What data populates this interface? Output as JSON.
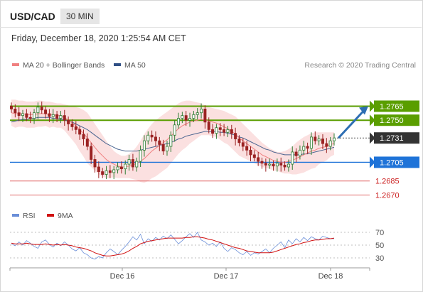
{
  "header": {
    "pair": "USD/CAD",
    "timeframe": "30 MIN",
    "datetime": "Friday, December 18, 2020 1:25:54 AM CET"
  },
  "legend": {
    "ma_bb": "MA 20 + Bollinger Bands",
    "ma50": "MA 50",
    "credit": "Research © 2020 Trading Central",
    "rsi": "RSI",
    "ma9": "9MA"
  },
  "colors": {
    "up_candle": "#2e7d32",
    "down_candle": "#9a2222",
    "bollinger_fill": "#fbe0e0",
    "ma20": "#f08080",
    "ma50": "#4a6490",
    "resistance": "#5a9e00",
    "pivot": "#1e73d8",
    "support": "#e06666",
    "last_price": "#333333",
    "arrow": "#2d6eb3",
    "rsi": "#6a8ed8",
    "rsi_ma": "#d01010"
  },
  "chart_data": [
    {
      "type": "candlestick",
      "title": "USD/CAD",
      "timeframe": "30 MIN",
      "x_ticks": [
        "Dec 16",
        "Dec 17",
        "Dec 18"
      ],
      "ylim": [
        1.2662,
        1.2795
      ],
      "levels": [
        {
          "label": "1.2765",
          "value": 1.2765,
          "kind": "resistance"
        },
        {
          "label": "1.2750",
          "value": 1.275,
          "kind": "resistance"
        },
        {
          "label": "1.2731",
          "value": 1.2731,
          "kind": "last"
        },
        {
          "label": "1.2705",
          "value": 1.2705,
          "kind": "pivot"
        },
        {
          "label": "1.2685",
          "value": 1.2685,
          "kind": "support"
        },
        {
          "label": "1.2670",
          "value": 1.267,
          "kind": "support"
        }
      ],
      "closes": [
        1.2762,
        1.2758,
        1.2755,
        1.2757,
        1.2753,
        1.2752,
        1.2758,
        1.2764,
        1.2761,
        1.2757,
        1.2754,
        1.2756,
        1.2752,
        1.2755,
        1.275,
        1.2746,
        1.2743,
        1.274,
        1.2735,
        1.273,
        1.2722,
        1.2708,
        1.27,
        1.2695,
        1.2692,
        1.2696,
        1.2694,
        1.2697,
        1.27,
        1.2698,
        1.2703,
        1.2708,
        1.27,
        1.2706,
        1.2718,
        1.2728,
        1.2734,
        1.2732,
        1.2728,
        1.2724,
        1.2717,
        1.2722,
        1.2734,
        1.2745,
        1.2752,
        1.2755,
        1.275,
        1.2752,
        1.2756,
        1.2758,
        1.2762,
        1.2748,
        1.274,
        1.2736,
        1.2742,
        1.274,
        1.2737,
        1.274,
        1.2736,
        1.273,
        1.2726,
        1.2722,
        1.2718,
        1.2713,
        1.271,
        1.2706,
        1.2704,
        1.2702,
        1.2703,
        1.2701,
        1.2704,
        1.2702,
        1.27,
        1.2703,
        1.2716,
        1.2712,
        1.2718,
        1.2722,
        1.272,
        1.2732,
        1.2728,
        1.273,
        1.2725,
        1.2722,
        1.2728,
        1.2731
      ],
      "ma20": [
        1.2758,
        1.2757,
        1.2757,
        1.2757,
        1.2756,
        1.2756,
        1.2756,
        1.2757,
        1.2757,
        1.2757,
        1.2756,
        1.2756,
        1.2755,
        1.2755,
        1.2753,
        1.275,
        1.2747,
        1.2744,
        1.274,
        1.2736,
        1.2731,
        1.2726,
        1.2721,
        1.2716,
        1.2712,
        1.2708,
        1.2705,
        1.2703,
        1.2701,
        1.27,
        1.27,
        1.2701,
        1.2702,
        1.2704,
        1.2706,
        1.2709,
        1.2713,
        1.2717,
        1.272,
        1.2723,
        1.2726,
        1.2729,
        1.2733,
        1.2737,
        1.2741,
        1.2744,
        1.2746,
        1.2748,
        1.2749,
        1.275,
        1.2751,
        1.275,
        1.2749,
        1.2748,
        1.2747,
        1.2745,
        1.2743,
        1.2741,
        1.2738,
        1.2735,
        1.2731,
        1.2728,
        1.2725,
        1.2722,
        1.2719,
        1.2716,
        1.2713,
        1.2711,
        1.2709,
        1.2707,
        1.2706,
        1.2705,
        1.2705,
        1.2706,
        1.2707,
        1.2709,
        1.2711,
        1.2713,
        1.2715,
        1.2717,
        1.2718,
        1.272,
        1.2721,
        1.2722,
        1.2724,
        1.2725
      ],
      "bb_upper": [
        1.2772,
        1.2772,
        1.2771,
        1.2771,
        1.277,
        1.277,
        1.277,
        1.2771,
        1.2771,
        1.277,
        1.277,
        1.2769,
        1.2768,
        1.2768,
        1.2767,
        1.2766,
        1.2765,
        1.2764,
        1.2763,
        1.2761,
        1.2758,
        1.2752,
        1.2746,
        1.274,
        1.2734,
        1.2728,
        1.2722,
        1.2717,
        1.2714,
        1.2712,
        1.2712,
        1.2714,
        1.2717,
        1.2722,
        1.2728,
        1.2735,
        1.2741,
        1.2746,
        1.275,
        1.2753,
        1.2756,
        1.2759,
        1.2762,
        1.2765,
        1.2768,
        1.277,
        1.2771,
        1.2771,
        1.277,
        1.2769,
        1.2768,
        1.2766,
        1.2764,
        1.2763,
        1.2762,
        1.2761,
        1.276,
        1.2758,
        1.2756,
        1.2754,
        1.275,
        1.2746,
        1.2742,
        1.2738,
        1.2734,
        1.273,
        1.2726,
        1.2723,
        1.272,
        1.2718,
        1.2716,
        1.2716,
        1.2717,
        1.2719,
        1.2722,
        1.2726,
        1.2729,
        1.2732,
        1.2734,
        1.2736,
        1.2737,
        1.2737,
        1.2737,
        1.2737,
        1.2737,
        1.2737
      ],
      "bb_lower": [
        1.2744,
        1.2742,
        1.2743,
        1.2743,
        1.2742,
        1.2742,
        1.2742,
        1.2743,
        1.2743,
        1.2744,
        1.2742,
        1.2743,
        1.2742,
        1.2742,
        1.2739,
        1.2734,
        1.2729,
        1.2724,
        1.2717,
        1.2711,
        1.2704,
        1.27,
        1.2696,
        1.2692,
        1.269,
        1.2688,
        1.2688,
        1.2689,
        1.2688,
        1.2688,
        1.2688,
        1.2688,
        1.2687,
        1.2686,
        1.2684,
        1.2683,
        1.2685,
        1.2688,
        1.269,
        1.2693,
        1.2696,
        1.2699,
        1.2704,
        1.2709,
        1.2714,
        1.2718,
        1.2721,
        1.2725,
        1.2728,
        1.2731,
        1.2734,
        1.2734,
        1.2734,
        1.2733,
        1.2732,
        1.2729,
        1.2726,
        1.2724,
        1.272,
        1.2716,
        1.2712,
        1.271,
        1.2708,
        1.2706,
        1.2704,
        1.2702,
        1.27,
        1.2699,
        1.2698,
        1.2696,
        1.2696,
        1.2694,
        1.2693,
        1.2693,
        1.2692,
        1.2692,
        1.2693,
        1.2694,
        1.2696,
        1.2698,
        1.2699,
        1.2703,
        1.2705,
        1.2707,
        1.2711,
        1.2713
      ],
      "ma50": [
        1.2748,
        1.2749,
        1.275,
        1.2751,
        1.2751,
        1.2752,
        1.2752,
        1.2753,
        1.2753,
        1.2753,
        1.2753,
        1.2752,
        1.2752,
        1.2751,
        1.275,
        1.2749,
        1.2748,
        1.2746,
        1.2744,
        1.2742,
        1.274,
        1.2737,
        1.2734,
        1.2731,
        1.2728,
        1.2725,
        1.2723,
        1.2721,
        1.2719,
        1.2718,
        1.2717,
        1.2717,
        1.2717,
        1.2717,
        1.2718,
        1.2719,
        1.272,
        1.2721,
        1.2722,
        1.2723,
        1.2724,
        1.2725,
        1.2726,
        1.2728,
        1.273,
        1.2731,
        1.2733,
        1.2734,
        1.2735,
        1.2736,
        1.2737,
        1.2738,
        1.2738,
        1.2738,
        1.2738,
        1.2737,
        1.2737,
        1.2736,
        1.2735,
        1.2734,
        1.2732,
        1.2731,
        1.2729,
        1.2727,
        1.2725,
        1.2723,
        1.2721,
        1.2719,
        1.2718,
        1.2716,
        1.2715,
        1.2714,
        1.2713,
        1.2713,
        1.2713,
        1.2713,
        1.2713,
        1.2714,
        1.2714,
        1.2715,
        1.2716,
        1.2717,
        1.2718,
        1.2719,
        1.272,
        1.2721
      ]
    },
    {
      "type": "line",
      "title": "RSI",
      "y_ticks": [
        "70",
        "50",
        "30"
      ],
      "ylim": [
        20,
        80
      ],
      "series": [
        {
          "name": "RSI",
          "values": [
            52,
            49,
            55,
            50,
            57,
            53,
            48,
            45,
            55,
            58,
            51,
            47,
            53,
            49,
            55,
            50,
            44,
            41,
            46,
            38,
            35,
            30,
            28,
            32,
            30,
            38,
            44,
            40,
            35,
            42,
            48,
            55,
            63,
            58,
            67,
            52,
            60,
            56,
            62,
            58,
            64,
            60,
            66,
            59,
            52,
            57,
            63,
            68,
            62,
            70,
            58,
            55,
            50,
            53,
            48,
            55,
            45,
            40,
            46,
            43,
            38,
            35,
            40,
            34,
            38,
            36,
            40,
            44,
            38,
            45,
            50,
            55,
            46,
            58,
            52,
            60,
            55,
            62,
            57,
            63,
            60,
            58,
            64,
            62,
            60,
            60
          ]
        },
        {
          "name": "9MA",
          "values": [
            53,
            52,
            52,
            52,
            53,
            52,
            51,
            51,
            51,
            52,
            51,
            50,
            51,
            50,
            51,
            50,
            49,
            47,
            46,
            45,
            43,
            41,
            38,
            36,
            34,
            33,
            33,
            34,
            35,
            36,
            38,
            41,
            45,
            48,
            52,
            54,
            56,
            57,
            58,
            59,
            60,
            61,
            61,
            61,
            61,
            61,
            62,
            62,
            63,
            63,
            62,
            61,
            59,
            58,
            56,
            54,
            52,
            50,
            48,
            46,
            45,
            43,
            41,
            40,
            39,
            38,
            38,
            38,
            38,
            39,
            41,
            43,
            45,
            47,
            49,
            51,
            52,
            54,
            55,
            57,
            58,
            58,
            59,
            60,
            60,
            61
          ]
        }
      ]
    }
  ]
}
